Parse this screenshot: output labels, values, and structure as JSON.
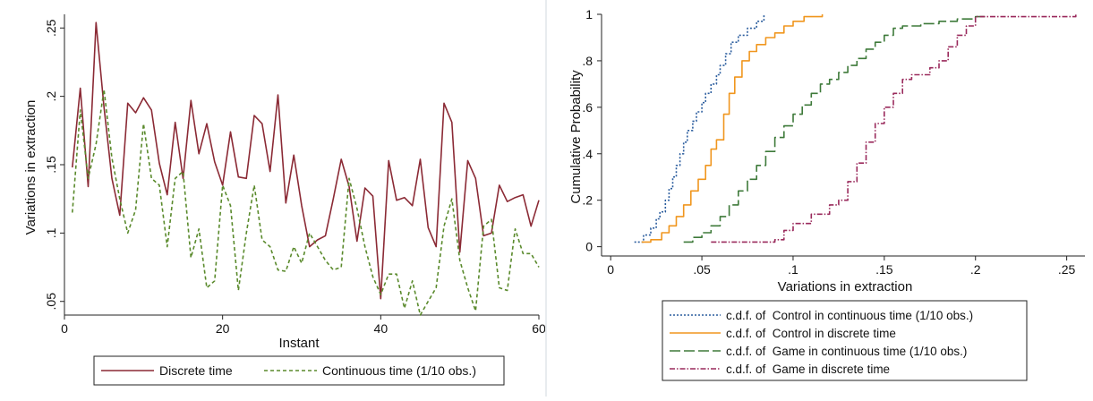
{
  "chart_data": [
    {
      "type": "line",
      "xlabel": "Instant",
      "ylabel": "Variations in extraction",
      "xlim": [
        0,
        60
      ],
      "ylim": [
        0.04,
        0.26
      ],
      "x_ticks": [
        "0",
        "20",
        "40",
        "60"
      ],
      "x_tick_values": [
        0,
        20,
        40,
        60
      ],
      "y_ticks": [
        ".05",
        ".1",
        ".15",
        ".2",
        ".25"
      ],
      "y_tick_values": [
        0.05,
        0.1,
        0.15,
        0.2,
        0.25
      ],
      "grid": false,
      "legend_position": "bottom",
      "series": [
        {
          "name": "Discrete time",
          "color": "#8b2a35",
          "style": "solid",
          "x": [
            1,
            2,
            3,
            4,
            5,
            6,
            7,
            8,
            9,
            10,
            11,
            12,
            13,
            14,
            15,
            16,
            17,
            18,
            19,
            20,
            21,
            22,
            23,
            24,
            25,
            26,
            27,
            28,
            29,
            30,
            31,
            32,
            33,
            34,
            35,
            36,
            37,
            38,
            39,
            40,
            41,
            42,
            43,
            44,
            45,
            46,
            47,
            48,
            49,
            50,
            51,
            52,
            53,
            54,
            55,
            56,
            57,
            58,
            59,
            60
          ],
          "values": [
            0.148,
            0.206,
            0.134,
            0.254,
            0.192,
            0.14,
            0.113,
            0.195,
            0.188,
            0.199,
            0.19,
            0.151,
            0.128,
            0.181,
            0.14,
            0.197,
            0.158,
            0.18,
            0.152,
            0.135,
            0.174,
            0.141,
            0.14,
            0.186,
            0.18,
            0.145,
            0.201,
            0.122,
            0.157,
            0.12,
            0.09,
            0.095,
            0.098,
            0.125,
            0.154,
            0.134,
            0.094,
            0.133,
            0.127,
            0.052,
            0.153,
            0.124,
            0.126,
            0.12,
            0.154,
            0.104,
            0.09,
            0.195,
            0.181,
            0.086,
            0.153,
            0.14,
            0.098,
            0.1,
            0.135,
            0.123,
            0.126,
            0.128,
            0.105,
            0.124
          ]
        },
        {
          "name": "Continuous time (1/10 obs.)",
          "color": "#5a8a2c",
          "style": "dashed",
          "x": [
            1,
            2,
            3,
            4,
            5,
            6,
            7,
            8,
            9,
            10,
            11,
            12,
            13,
            14,
            15,
            16,
            17,
            18,
            19,
            20,
            21,
            22,
            23,
            24,
            25,
            26,
            27,
            28,
            29,
            30,
            31,
            32,
            33,
            34,
            35,
            36,
            37,
            38,
            39,
            40,
            41,
            42,
            43,
            44,
            45,
            46,
            47,
            48,
            49,
            50,
            51,
            52,
            53,
            54,
            55,
            56,
            57,
            58,
            59,
            60
          ],
          "values": [
            0.115,
            0.19,
            0.14,
            0.165,
            0.205,
            0.155,
            0.125,
            0.1,
            0.117,
            0.18,
            0.14,
            0.135,
            0.09,
            0.14,
            0.145,
            0.082,
            0.103,
            0.06,
            0.065,
            0.135,
            0.12,
            0.058,
            0.1,
            0.135,
            0.095,
            0.09,
            0.073,
            0.072,
            0.09,
            0.078,
            0.1,
            0.09,
            0.08,
            0.073,
            0.075,
            0.14,
            0.118,
            0.09,
            0.068,
            0.055,
            0.07,
            0.07,
            0.045,
            0.065,
            0.04,
            0.05,
            0.06,
            0.105,
            0.125,
            0.08,
            0.06,
            0.043,
            0.105,
            0.11,
            0.06,
            0.058,
            0.103,
            0.085,
            0.085,
            0.075
          ]
        }
      ]
    },
    {
      "type": "line",
      "xlabel": "Variations in extraction",
      "ylabel": "Cumulative Probability",
      "xlim": [
        -0.005,
        0.26
      ],
      "ylim": [
        -0.04,
        1.0
      ],
      "x_ticks": [
        "0",
        ".05",
        ".1",
        ".15",
        ".2",
        ".25"
      ],
      "x_tick_values": [
        0,
        0.05,
        0.1,
        0.15,
        0.2,
        0.25
      ],
      "y_ticks": [
        "0",
        ".2",
        ".4",
        ".6",
        ".8",
        "1"
      ],
      "y_tick_values": [
        0,
        0.2,
        0.4,
        0.6,
        0.8,
        1
      ],
      "grid": false,
      "legend_position": "bottom",
      "series": [
        {
          "name": "c.d.f. of  Control in continuous time (1/10 obs.)",
          "color": "#2b5d9e",
          "style": "dotted",
          "x": [
            0.013,
            0.018,
            0.022,
            0.025,
            0.027,
            0.03,
            0.032,
            0.034,
            0.036,
            0.038,
            0.04,
            0.042,
            0.045,
            0.047,
            0.05,
            0.052,
            0.055,
            0.058,
            0.06,
            0.063,
            0.066,
            0.07,
            0.075,
            0.08,
            0.084
          ],
          "values": [
            0.02,
            0.05,
            0.08,
            0.12,
            0.15,
            0.2,
            0.25,
            0.3,
            0.35,
            0.4,
            0.45,
            0.5,
            0.54,
            0.58,
            0.62,
            0.66,
            0.7,
            0.74,
            0.78,
            0.83,
            0.88,
            0.91,
            0.94,
            0.97,
            1.0
          ]
        },
        {
          "name": "c.d.f. of  Control in discrete time",
          "color": "#f0961e",
          "style": "solid",
          "x": [
            0.017,
            0.022,
            0.028,
            0.032,
            0.036,
            0.04,
            0.044,
            0.048,
            0.052,
            0.055,
            0.058,
            0.062,
            0.065,
            0.068,
            0.072,
            0.076,
            0.08,
            0.085,
            0.09,
            0.095,
            0.1,
            0.106,
            0.116
          ],
          "values": [
            0.02,
            0.03,
            0.06,
            0.09,
            0.13,
            0.18,
            0.24,
            0.29,
            0.35,
            0.42,
            0.46,
            0.57,
            0.66,
            0.73,
            0.8,
            0.84,
            0.87,
            0.9,
            0.92,
            0.95,
            0.97,
            0.99,
            1.0
          ]
        },
        {
          "name": "c.d.f. of  Game in continuous time (1/10 obs.)",
          "color": "#3e7a3a",
          "style": "longdash",
          "x": [
            0.04,
            0.045,
            0.05,
            0.055,
            0.06,
            0.065,
            0.07,
            0.075,
            0.08,
            0.085,
            0.09,
            0.095,
            0.1,
            0.105,
            0.11,
            0.115,
            0.12,
            0.125,
            0.13,
            0.135,
            0.14,
            0.145,
            0.15,
            0.155,
            0.16,
            0.17,
            0.18,
            0.19,
            0.2,
            0.205
          ],
          "values": [
            0.02,
            0.04,
            0.06,
            0.09,
            0.13,
            0.18,
            0.24,
            0.29,
            0.35,
            0.41,
            0.47,
            0.52,
            0.57,
            0.61,
            0.66,
            0.7,
            0.72,
            0.75,
            0.78,
            0.81,
            0.85,
            0.88,
            0.91,
            0.94,
            0.95,
            0.96,
            0.97,
            0.98,
            0.99,
            1.0
          ]
        },
        {
          "name": "c.d.f. of  Game in discrete time",
          "color": "#9a2a5c",
          "style": "dashdot",
          "x": [
            0.055,
            0.09,
            0.095,
            0.1,
            0.11,
            0.12,
            0.125,
            0.13,
            0.135,
            0.14,
            0.145,
            0.15,
            0.155,
            0.16,
            0.165,
            0.17,
            0.175,
            0.18,
            0.185,
            0.19,
            0.195,
            0.2,
            0.255
          ],
          "values": [
            0.02,
            0.03,
            0.07,
            0.1,
            0.14,
            0.18,
            0.2,
            0.28,
            0.36,
            0.45,
            0.53,
            0.6,
            0.66,
            0.72,
            0.74,
            0.74,
            0.77,
            0.8,
            0.86,
            0.91,
            0.95,
            0.99,
            1.0
          ]
        }
      ]
    }
  ]
}
